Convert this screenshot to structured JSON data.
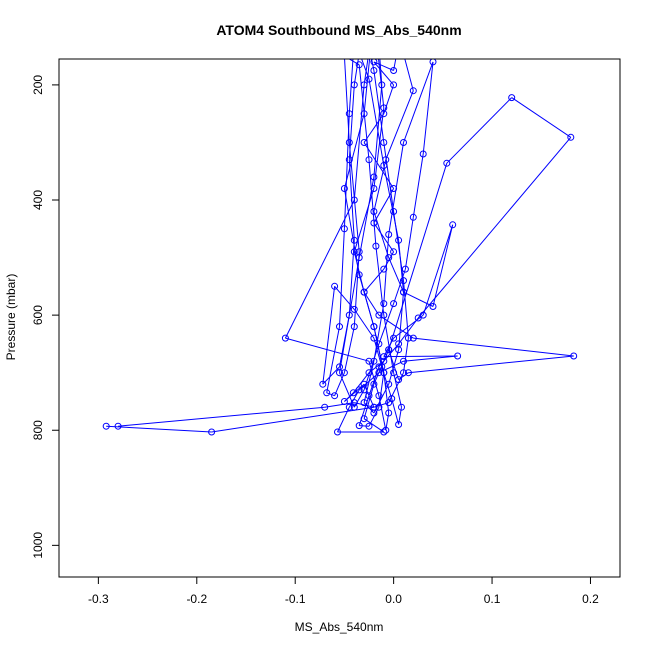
{
  "chart_data": {
    "type": "line",
    "title": "ATOM4 Southbound MS_Abs_540nm",
    "xlabel": "MS_Abs_540nm",
    "ylabel": "Pressure (mbar)",
    "xlim": [
      -0.34,
      0.23
    ],
    "ylim": [
      1055,
      155
    ],
    "y_inverted": true,
    "grid": false,
    "line_color": "#0000ff",
    "x_ticks": [
      {
        "value": -0.3,
        "label": "-0.3"
      },
      {
        "value": -0.2,
        "label": "-0.2"
      },
      {
        "value": -0.1,
        "label": "-0.1"
      },
      {
        "value": 0.0,
        "label": "0.0"
      },
      {
        "value": 0.1,
        "label": "0.1"
      },
      {
        "value": 0.2,
        "label": "0.2"
      }
    ],
    "y_ticks": [
      {
        "value": 200,
        "label": "200"
      },
      {
        "value": 400,
        "label": "400"
      },
      {
        "value": 600,
        "label": "600"
      },
      {
        "value": 800,
        "label": "800"
      },
      {
        "value": 1000,
        "label": "1000"
      }
    ],
    "series": [
      {
        "points": [
          [
            -0.292,
            793
          ],
          [
            -0.185,
            803
          ],
          [
            -0.02,
            760
          ],
          [
            -0.03,
            720
          ],
          [
            -0.05,
            750
          ],
          [
            -0.041,
            735
          ],
          [
            -0.025,
            700
          ],
          [
            -0.01,
            680
          ],
          [
            -0.005,
            660
          ],
          [
            0.005,
            712
          ],
          [
            0.015,
            700
          ],
          [
            0.183,
            671
          ],
          [
            0.02,
            640
          ],
          [
            -0.015,
            600
          ],
          [
            -0.03,
            560
          ],
          [
            -0.01,
            520
          ],
          [
            0.0,
            490
          ],
          [
            -0.02,
            440
          ],
          [
            0.0,
            380
          ],
          [
            -0.03,
            300
          ],
          [
            -0.01,
            250
          ],
          [
            0.0,
            200
          ],
          [
            -0.02,
            160
          ],
          [
            0.0,
            175
          ],
          [
            0.006,
            120
          ],
          [
            0.02,
            210
          ],
          [
            -0.008,
            330
          ],
          [
            -0.02,
            420
          ],
          [
            -0.005,
            500
          ],
          [
            0.01,
            560
          ],
          [
            0.04,
            585
          ],
          [
            0.06,
            443
          ],
          [
            0.03,
            600
          ],
          [
            0.0,
            640
          ],
          [
            -0.01,
            672
          ],
          [
            0.065,
            671
          ],
          [
            0.01,
            680
          ],
          [
            -0.015,
            700
          ],
          [
            -0.035,
            730
          ],
          [
            -0.045,
            760
          ],
          [
            -0.057,
            803
          ],
          [
            -0.01,
            803
          ],
          [
            -0.03,
            780
          ],
          [
            -0.02,
            720
          ],
          [
            -0.005,
            660
          ],
          [
            0.054,
            336
          ],
          [
            0.12,
            222
          ],
          [
            0.18,
            291
          ],
          [
            0.025,
            605
          ],
          [
            0.005,
            650
          ],
          [
            -0.015,
            690
          ],
          [
            -0.025,
            740
          ],
          [
            -0.035,
            792
          ],
          [
            -0.025,
            793
          ],
          [
            -0.015,
            760
          ],
          [
            -0.01,
            700
          ],
          [
            -0.02,
            620
          ],
          [
            -0.035,
            530
          ],
          [
            -0.05,
            380
          ],
          [
            -0.03,
            250
          ],
          [
            -0.02,
            80
          ],
          [
            -0.01,
            240
          ],
          [
            -0.02,
            380
          ],
          [
            -0.04,
            490
          ],
          [
            -0.03,
            560
          ],
          [
            -0.02,
            620
          ],
          [
            -0.01,
            700
          ],
          [
            -0.005,
            770
          ],
          [
            -0.008,
            800
          ],
          [
            -0.015,
            740
          ],
          [
            -0.025,
            680
          ],
          [
            -0.11,
            640
          ],
          [
            -0.04,
            400
          ],
          [
            -0.03,
            200
          ],
          [
            -0.018,
            60
          ],
          [
            -0.012,
            200
          ],
          [
            -0.02,
            360
          ],
          [
            -0.035,
            500
          ],
          [
            -0.055,
            700
          ],
          [
            -0.04,
            760
          ],
          [
            -0.03,
            730
          ],
          [
            -0.015,
            650
          ],
          [
            0.0,
            580
          ],
          [
            0.012,
            520
          ],
          [
            0.02,
            430
          ],
          [
            0.03,
            320
          ],
          [
            0.04,
            160
          ],
          [
            0.01,
            300
          ],
          [
            -0.005,
            460
          ],
          [
            -0.01,
            580
          ],
          [
            -0.02,
            680
          ],
          [
            -0.03,
            752
          ],
          [
            -0.02,
            770
          ],
          [
            -0.005,
            720
          ],
          [
            0.005,
            660
          ],
          [
            0.01,
            560
          ],
          [
            0.005,
            470
          ],
          [
            -0.01,
            340
          ],
          [
            -0.025,
            190
          ],
          [
            -0.04,
            120
          ],
          [
            -0.045,
            250
          ],
          [
            -0.05,
            450
          ],
          [
            -0.055,
            620
          ],
          [
            -0.068,
            735
          ],
          [
            -0.06,
            740
          ],
          [
            -0.05,
            700
          ],
          [
            -0.04,
            620
          ],
          [
            -0.035,
            490
          ],
          [
            -0.045,
            300
          ],
          [
            -0.05,
            150
          ],
          [
            -0.035,
            165
          ],
          [
            -0.025,
            330
          ],
          [
            -0.018,
            480
          ],
          [
            -0.01,
            600
          ],
          [
            0.0,
            700
          ],
          [
            0.008,
            760
          ],
          [
            0.005,
            790
          ],
          [
            -0.002,
            745
          ],
          [
            -0.012,
            690
          ],
          [
            -0.02,
            640
          ],
          [
            -0.04,
            590
          ],
          [
            -0.06,
            550
          ],
          [
            -0.072,
            720
          ],
          [
            -0.055,
            690
          ],
          [
            -0.045,
            600
          ],
          [
            -0.04,
            470
          ],
          [
            -0.045,
            330
          ],
          [
            -0.04,
            200
          ],
          [
            -0.03,
            90
          ],
          [
            -0.02,
            175
          ],
          [
            -0.01,
            300
          ],
          [
            0.0,
            420
          ],
          [
            0.01,
            540
          ],
          [
            0.015,
            640
          ],
          [
            0.01,
            700
          ],
          [
            -0.005,
            752
          ],
          [
            -0.02,
            760
          ],
          [
            -0.04,
            752
          ],
          [
            -0.07,
            760
          ],
          [
            -0.28,
            793
          ]
        ]
      }
    ]
  }
}
